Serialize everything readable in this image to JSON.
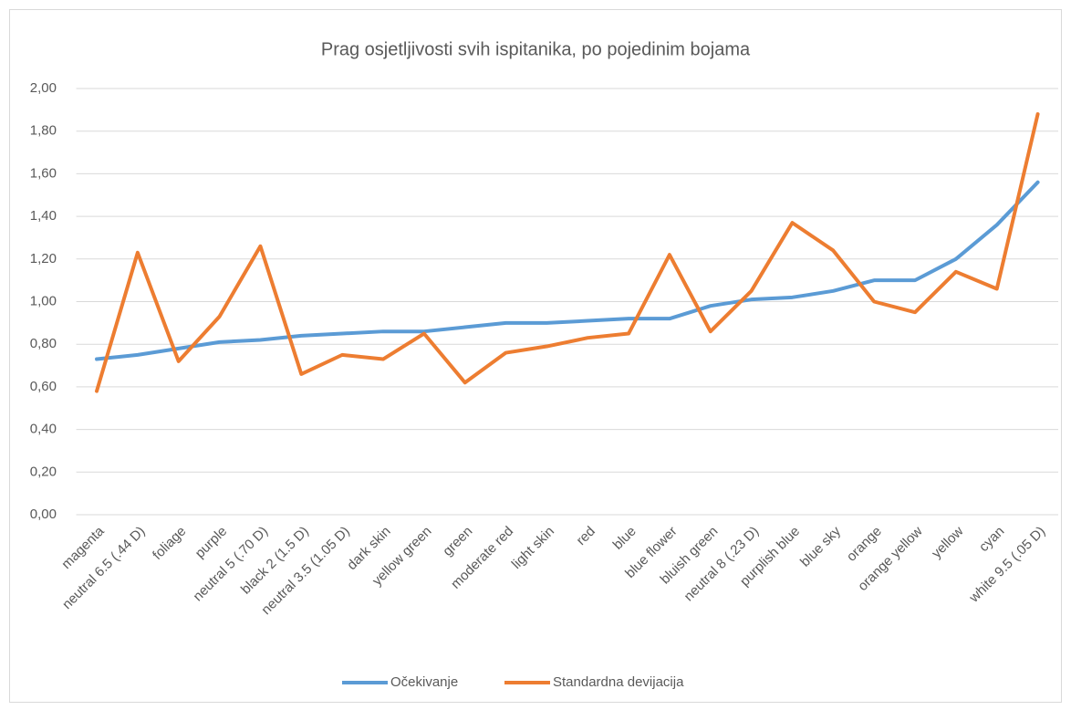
{
  "chart_data": {
    "type": "line",
    "title": "Prag osjetljivosti svih ispitanika, po pojedinim bojama",
    "categories": [
      "magenta",
      "neutral 6.5 (.44 D)",
      "foliage",
      "purple",
      "neutral 5 (.70 D)",
      "black 2 (1.5 D)",
      "neutral 3.5 (1.05 D)",
      "dark skin",
      "yellow green",
      "green",
      "moderate red",
      "light skin",
      "red",
      "blue",
      "blue flower",
      "bluish green",
      "neutral 8 (.23 D)",
      "purplish blue",
      "blue sky",
      "orange",
      "orange yellow",
      "yellow",
      "cyan",
      "white 9.5 (.05 D)"
    ],
    "series": [
      {
        "name": "Očekivanje",
        "color": "#5b9bd5",
        "values": [
          0.73,
          0.75,
          0.78,
          0.81,
          0.82,
          0.84,
          0.85,
          0.86,
          0.86,
          0.88,
          0.9,
          0.9,
          0.91,
          0.92,
          0.92,
          0.98,
          1.01,
          1.02,
          1.05,
          1.1,
          1.1,
          1.2,
          1.36,
          1.56
        ]
      },
      {
        "name": "Standardna devijacija",
        "color": "#ed7d31",
        "values": [
          0.58,
          1.23,
          0.72,
          0.93,
          1.26,
          0.66,
          0.75,
          0.73,
          0.85,
          0.62,
          0.76,
          0.79,
          0.83,
          0.85,
          1.22,
          0.86,
          1.05,
          1.37,
          1.24,
          1.0,
          0.95,
          1.14,
          1.06,
          1.88
        ]
      }
    ],
    "ylim": [
      0,
      2
    ],
    "yticks": [
      {
        "value": 0,
        "label": "0,00"
      },
      {
        "value": 0.2,
        "label": "0,20"
      },
      {
        "value": 0.4,
        "label": "0,40"
      },
      {
        "value": 0.6,
        "label": "0,60"
      },
      {
        "value": 0.8,
        "label": "0,80"
      },
      {
        "value": 1,
        "label": "1,00"
      },
      {
        "value": 1.2,
        "label": "1,20"
      },
      {
        "value": 1.4,
        "label": "1,40"
      },
      {
        "value": 1.6,
        "label": "1,60"
      },
      {
        "value": 1.8,
        "label": "1,80"
      },
      {
        "value": 2,
        "label": "2,00"
      }
    ],
    "grid": true,
    "legend": "bottom"
  }
}
